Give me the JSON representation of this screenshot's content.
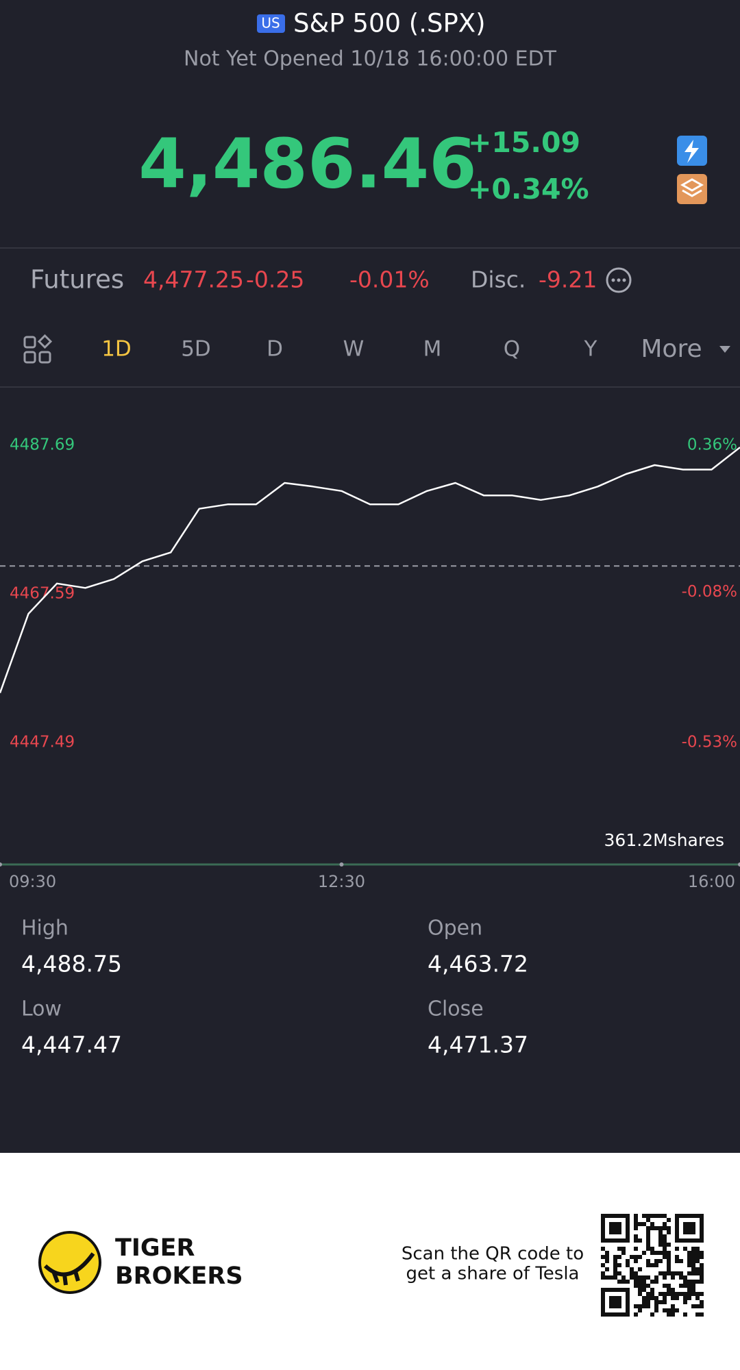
{
  "header": {
    "market_badge": "US",
    "title": "S&P 500 (.SPX)",
    "status": "Not Yet Opened 10/18 16:00:00 EDT"
  },
  "quote": {
    "price": "4,486.46",
    "change": "+15.09",
    "change_pct": "+0.34%"
  },
  "futures": {
    "label": "Futures",
    "price": "4,477.25",
    "change": "-0.25",
    "change_pct": "-0.01%",
    "disc_label": "Disc.",
    "disc": "-9.21"
  },
  "tabs": [
    "1D",
    "5D",
    "D",
    "W",
    "M",
    "Q",
    "Y",
    "More"
  ],
  "chart_data": {
    "type": "line",
    "x": [
      "09:30",
      "09:45",
      "10:00",
      "10:15",
      "10:30",
      "10:45",
      "11:00",
      "11:15",
      "11:30",
      "11:45",
      "12:00",
      "12:15",
      "12:30",
      "12:45",
      "13:00",
      "13:15",
      "13:30",
      "13:45",
      "14:00",
      "14:15",
      "14:30",
      "14:45",
      "15:00",
      "15:15",
      "15:30",
      "15:45",
      "16:00"
    ],
    "values": [
      4454.2,
      4464.9,
      4469.0,
      4468.4,
      4469.6,
      4472.0,
      4473.2,
      4479.1,
      4479.7,
      4479.7,
      4482.6,
      4482.1,
      4481.5,
      4479.7,
      4479.7,
      4481.5,
      4482.6,
      4480.9,
      4480.9,
      4480.3,
      4480.9,
      4482.1,
      4483.8,
      4485.0,
      4484.4,
      4484.4,
      4487.4
    ],
    "color": "#ffffff",
    "ylim": [
      4447.49,
      4487.69
    ],
    "yticks": [
      4487.69,
      4467.59,
      4447.49
    ],
    "y2lim": [
      -0.53,
      0.36
    ],
    "y2ticks": [
      {
        "value": 0.36,
        "label": "0.36%"
      },
      {
        "value": -0.08,
        "label": "-0.08%"
      },
      {
        "value": -0.53,
        "label": "-0.53%"
      }
    ],
    "xticks": [
      "09:30",
      "12:30",
      "16:00"
    ],
    "reference_line": 4471.37,
    "volume_label": "361.2Mshares"
  },
  "stats": [
    {
      "label": "High",
      "value": "4,488.75"
    },
    {
      "label": "Open",
      "value": "4,463.72"
    },
    {
      "label": "Low",
      "value": "4,447.47"
    },
    {
      "label": "Close",
      "value": "4,471.37"
    }
  ],
  "footer": {
    "brand_line1": "TIGER",
    "brand_line2": "BROKERS",
    "promo_line1": "Scan the QR code to",
    "promo_line2": "get a share of Tesla"
  }
}
